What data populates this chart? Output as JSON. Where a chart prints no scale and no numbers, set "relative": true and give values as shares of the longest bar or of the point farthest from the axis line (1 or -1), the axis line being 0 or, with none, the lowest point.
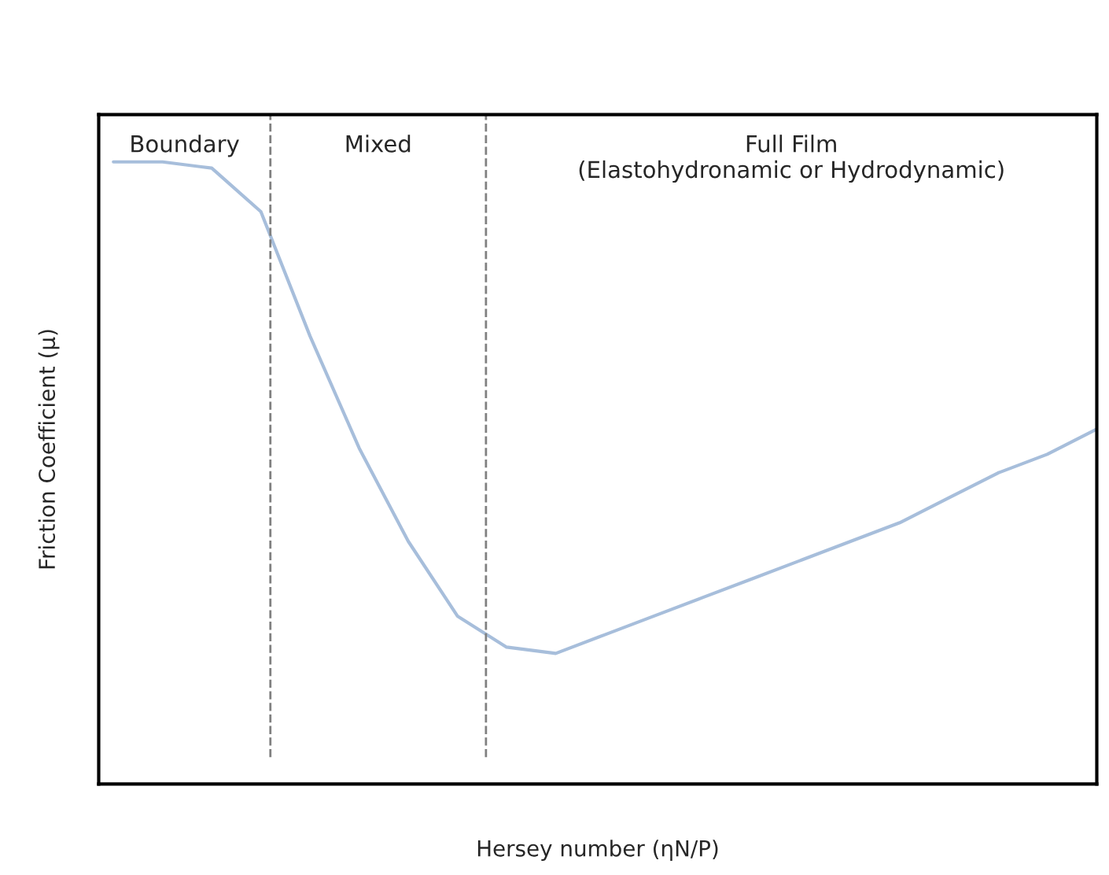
{
  "chart_data": {
    "type": "line",
    "relative": true,
    "xlabel": "Hersey number (ηN/P)",
    "ylabel": "Friction Coefficient (μ)",
    "categories": [
      null,
      null,
      null,
      null,
      null,
      null,
      null,
      null,
      null,
      null,
      null,
      null,
      null,
      null,
      null,
      null,
      null,
      null,
      null,
      null,
      null
    ],
    "series": [
      {
        "color": "#a7bedb",
        "values": [
          1.0,
          1.0,
          0.99,
          0.92,
          0.72,
          0.54,
          0.39,
          0.27,
          0.22,
          0.21,
          0.24,
          0.27,
          0.3,
          0.33,
          0.36,
          0.39,
          0.42,
          0.46,
          0.5,
          0.53,
          0.57
        ]
      }
    ],
    "annotations": [
      "Boundary",
      "Mixed",
      "Full Film\n(Elastohydronamic or Hydrodynamic)"
    ],
    "grid": false,
    "legend": false,
    "marker": "none",
    "line_style": "solid"
  }
}
